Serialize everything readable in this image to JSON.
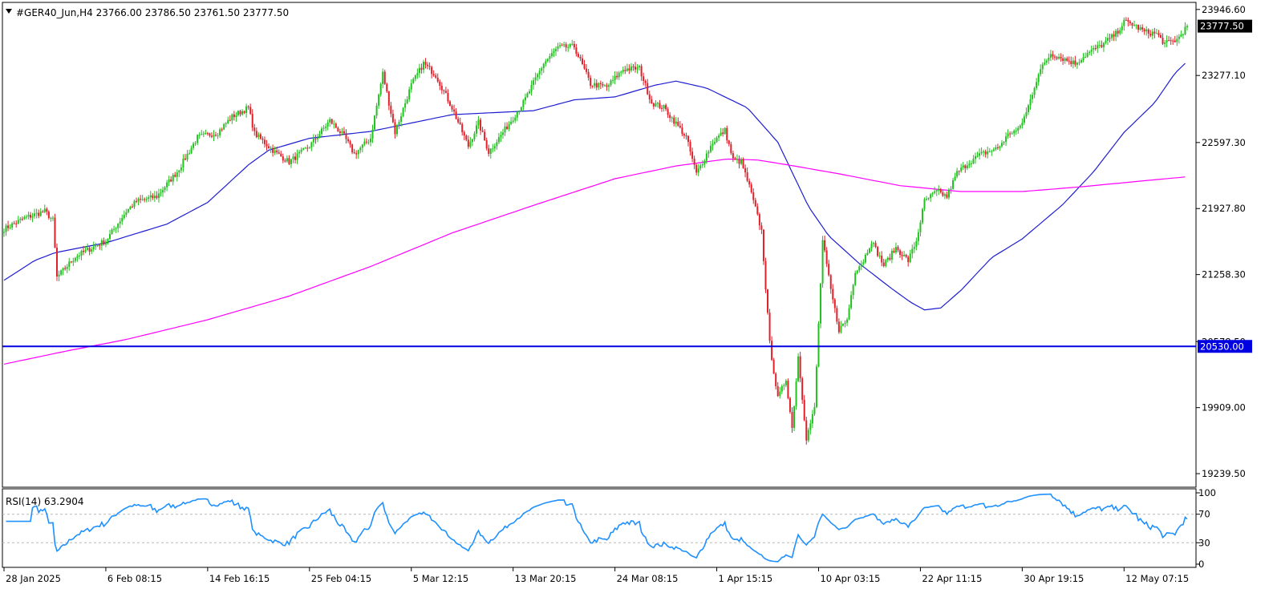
{
  "chart_data": {
    "type": "candlestick",
    "symbol": "#GER40_Jun,H4",
    "ohlc": {
      "open": "23766.00",
      "high": "23786.50",
      "low": "23761.50",
      "close": "23777.50"
    },
    "price_axis": {
      "ticks": [
        "23946.60",
        "23277.10",
        "22597.30",
        "21927.80",
        "21258.30",
        "20578.50",
        "19909.00",
        "19239.50"
      ],
      "tick_values": [
        23946.6,
        23277.1,
        22597.3,
        21927.8,
        21258.3,
        20578.5,
        19909.0,
        19239.5
      ],
      "ylim": [
        19110,
        24010
      ],
      "current_price_label": "23777.50",
      "current_price": 23777.5,
      "hline_label": "20530.00",
      "hline_value": 20530.0
    },
    "x_axis": {
      "labels": [
        "28 Jan 2025",
        "6 Feb 08:15",
        "14 Feb 16:15",
        "25 Feb 04:15",
        "5 Mar 12:15",
        "13 Mar 20:15",
        "24 Mar 08:15",
        "1 Apr 15:15",
        "10 Apr 03:15",
        "22 Apr 11:15",
        "30 Apr 19:15",
        "12 May 07:15"
      ],
      "label_bar_index": [
        0,
        50,
        100,
        150,
        200,
        250,
        300,
        350,
        400,
        450,
        500,
        550
      ],
      "bar_count": 582
    },
    "price_path": [
      [
        0,
        21720
      ],
      [
        10,
        21830
      ],
      [
        20,
        21900
      ],
      [
        24,
        21810
      ],
      [
        26,
        21230
      ],
      [
        35,
        21440
      ],
      [
        45,
        21550
      ],
      [
        50,
        21600
      ],
      [
        60,
        21900
      ],
      [
        65,
        22000
      ],
      [
        75,
        22050
      ],
      [
        85,
        22300
      ],
      [
        95,
        22650
      ],
      [
        105,
        22700
      ],
      [
        112,
        22860
      ],
      [
        120,
        22950
      ],
      [
        123,
        22690
      ],
      [
        133,
        22500
      ],
      [
        140,
        22400
      ],
      [
        150,
        22560
      ],
      [
        160,
        22820
      ],
      [
        167,
        22660
      ],
      [
        172,
        22480
      ],
      [
        180,
        22640
      ],
      [
        186,
        23300
      ],
      [
        192,
        22700
      ],
      [
        200,
        23180
      ],
      [
        206,
        23400
      ],
      [
        212,
        23280
      ],
      [
        220,
        22950
      ],
      [
        228,
        22560
      ],
      [
        233,
        22800
      ],
      [
        238,
        22500
      ],
      [
        245,
        22700
      ],
      [
        255,
        23000
      ],
      [
        265,
        23400
      ],
      [
        272,
        23560
      ],
      [
        280,
        23570
      ],
      [
        288,
        23190
      ],
      [
        296,
        23160
      ],
      [
        304,
        23340
      ],
      [
        312,
        23350
      ],
      [
        318,
        23000
      ],
      [
        324,
        22950
      ],
      [
        330,
        22790
      ],
      [
        335,
        22650
      ],
      [
        340,
        22280
      ],
      [
        348,
        22600
      ],
      [
        354,
        22720
      ],
      [
        358,
        22420
      ],
      [
        362,
        22400
      ],
      [
        366,
        22150
      ],
      [
        372,
        21700
      ],
      [
        376,
        20560
      ],
      [
        380,
        20000
      ],
      [
        384,
        20200
      ],
      [
        387,
        19700
      ],
      [
        390,
        20430
      ],
      [
        394,
        19600
      ],
      [
        398,
        19900
      ],
      [
        402,
        21600
      ],
      [
        406,
        21100
      ],
      [
        410,
        20700
      ],
      [
        414,
        20800
      ],
      [
        418,
        21300
      ],
      [
        422,
        21400
      ],
      [
        426,
        21600
      ],
      [
        432,
        21350
      ],
      [
        438,
        21530
      ],
      [
        444,
        21400
      ],
      [
        448,
        21600
      ],
      [
        452,
        22000
      ],
      [
        458,
        22100
      ],
      [
        463,
        22050
      ],
      [
        468,
        22290
      ],
      [
        474,
        22400
      ],
      [
        480,
        22480
      ],
      [
        488,
        22540
      ],
      [
        494,
        22700
      ],
      [
        498,
        22720
      ],
      [
        502,
        22900
      ],
      [
        508,
        23300
      ],
      [
        514,
        23500
      ],
      [
        520,
        23450
      ],
      [
        526,
        23400
      ],
      [
        532,
        23500
      ],
      [
        540,
        23600
      ],
      [
        546,
        23700
      ],
      [
        550,
        23820
      ],
      [
        554,
        23800
      ],
      [
        560,
        23720
      ],
      [
        566,
        23700
      ],
      [
        570,
        23600
      ],
      [
        576,
        23640
      ],
      [
        581,
        23777.5
      ]
    ],
    "moving_averages": [
      {
        "color": "#1e1ed2",
        "points": [
          [
            0,
            21200
          ],
          [
            15,
            21400
          ],
          [
            25,
            21480
          ],
          [
            50,
            21580
          ],
          [
            80,
            21770
          ],
          [
            100,
            21990
          ],
          [
            120,
            22370
          ],
          [
            130,
            22520
          ],
          [
            150,
            22640
          ],
          [
            180,
            22710
          ],
          [
            220,
            22880
          ],
          [
            260,
            22920
          ],
          [
            280,
            23030
          ],
          [
            300,
            23060
          ],
          [
            320,
            23180
          ],
          [
            330,
            23220
          ],
          [
            345,
            23150
          ],
          [
            365,
            22950
          ],
          [
            380,
            22600
          ],
          [
            395,
            21950
          ],
          [
            405,
            21650
          ],
          [
            420,
            21370
          ],
          [
            435,
            21130
          ],
          [
            445,
            20980
          ],
          [
            452,
            20900
          ],
          [
            460,
            20920
          ],
          [
            470,
            21100
          ],
          [
            485,
            21430
          ],
          [
            500,
            21620
          ],
          [
            520,
            21970
          ],
          [
            535,
            22300
          ],
          [
            550,
            22700
          ],
          [
            565,
            23000
          ],
          [
            575,
            23300
          ],
          [
            581,
            23420
          ]
        ]
      },
      {
        "color": "#ff00ff",
        "points": [
          [
            0,
            20350
          ],
          [
            30,
            20480
          ],
          [
            60,
            20600
          ],
          [
            100,
            20800
          ],
          [
            140,
            21040
          ],
          [
            180,
            21340
          ],
          [
            220,
            21680
          ],
          [
            260,
            21960
          ],
          [
            300,
            22230
          ],
          [
            330,
            22360
          ],
          [
            355,
            22430
          ],
          [
            370,
            22420
          ],
          [
            385,
            22370
          ],
          [
            410,
            22280
          ],
          [
            440,
            22160
          ],
          [
            470,
            22100
          ],
          [
            500,
            22100
          ],
          [
            530,
            22150
          ],
          [
            560,
            22210
          ],
          [
            581,
            22250
          ]
        ]
      }
    ],
    "colors": {
      "bull": "#22c020",
      "bear": "#e0202a",
      "hline": "#0000e0",
      "rsi": "#1e90ff",
      "frame": "#000000"
    },
    "rsi": {
      "label": "RSI(14) 63.2904",
      "period": 14,
      "value": 63.2904,
      "levels": [
        70,
        30
      ],
      "scale_labels": [
        "100",
        "70",
        "30",
        "0"
      ],
      "scale_values": [
        100,
        70,
        30,
        0
      ]
    }
  }
}
